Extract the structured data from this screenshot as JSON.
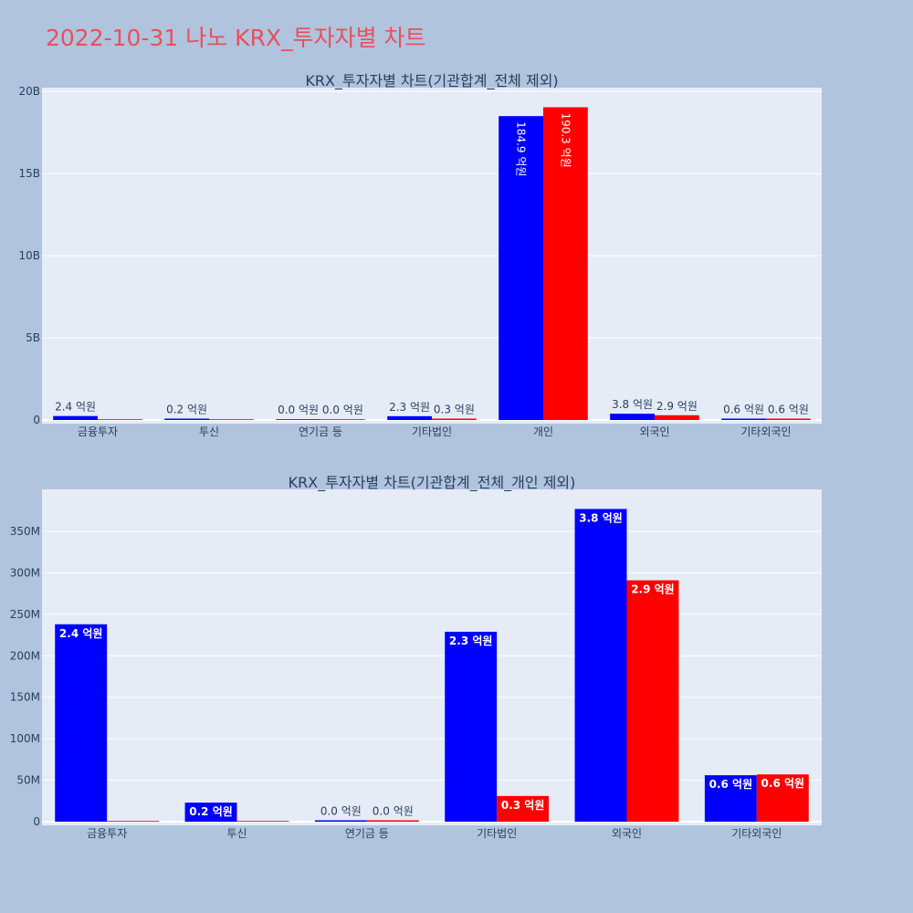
{
  "title": "2022-10-31 나노 KRX_투자자별 차트",
  "colors": {
    "buy": "#0000ff",
    "sell": "#ff0000",
    "plot_bg": "#e5ecf6",
    "page_bg": "#b0c4de",
    "title": "#e8505b"
  },
  "chart_data": [
    {
      "type": "bar",
      "title": "KRX_투자자별 차트(기관합계_전체 제외)",
      "categories": [
        "금융투자",
        "투신",
        "연기금 등",
        "기타법인",
        "개인",
        "외국인",
        "기타외국인"
      ],
      "series": [
        {
          "values": [
            240000000,
            20000000,
            0,
            230000000,
            18490000000,
            380000000,
            60000000
          ],
          "labels": [
            "2.4 억원",
            "0.2 억원",
            "0.0 억원",
            "2.3 억원",
            "184.9 억원",
            "3.8 억원",
            "0.6 억원"
          ]
        },
        {
          "values": [
            0,
            0,
            0,
            30000000,
            19030000000,
            290000000,
            60000000
          ],
          "labels": [
            "",
            "",
            "0.0 억원",
            "0.3 억원",
            "190.3 억원",
            "2.9 억원",
            "0.6 억원"
          ]
        }
      ],
      "ylim": [
        0,
        20000000000
      ],
      "yticks": [
        0,
        5000000000,
        10000000000,
        15000000000,
        20000000000
      ],
      "ytick_labels": [
        "0",
        "5B",
        "10B",
        "15B",
        "20B"
      ],
      "grid": true
    },
    {
      "type": "bar",
      "title": "KRX_투자자별 차트(기관합계_전체_개인 제외)",
      "categories": [
        "금융투자",
        "투신",
        "연기금 등",
        "기타법인",
        "외국인",
        "기타외국인"
      ],
      "series": [
        {
          "values": [
            238000000,
            23000000,
            1000000,
            229000000,
            377000000,
            56000000
          ],
          "labels": [
            "2.4 억원",
            "0.2 억원",
            "0.0 억원",
            "2.3 억원",
            "3.8 억원",
            "0.6 억원"
          ]
        },
        {
          "values": [
            0,
            0,
            1000000,
            31000000,
            291000000,
            57000000
          ],
          "labels": [
            "",
            "",
            "0.0 억원",
            "0.3 억원",
            "2.9 억원",
            "0.6 억원"
          ]
        }
      ],
      "ylim": [
        0,
        400000000
      ],
      "yticks": [
        0,
        50000000,
        100000000,
        150000000,
        200000000,
        250000000,
        300000000,
        350000000
      ],
      "ytick_labels": [
        "0",
        "50M",
        "100M",
        "150M",
        "200M",
        "250M",
        "300M",
        "350M"
      ],
      "grid": true
    }
  ]
}
